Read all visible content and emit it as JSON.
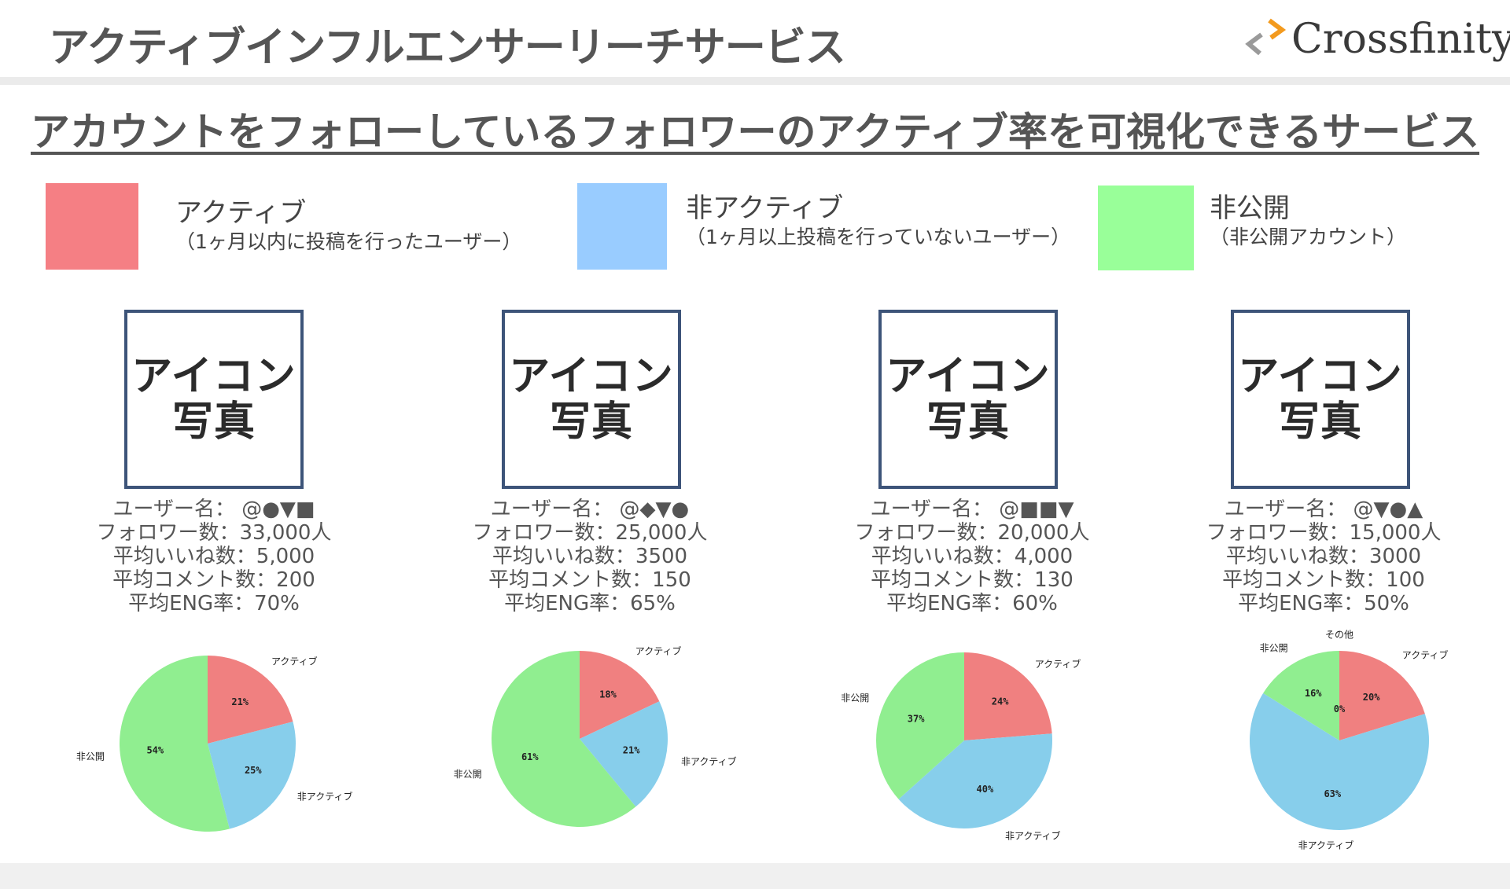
{
  "header": {
    "title": "アクティブインフルエンサーリーチサービス",
    "logo_text": "Crossfinity",
    "logo_icon": "chevron-arrows-logo"
  },
  "subtitle": "アカウントをフォローしているフォロワーのアクティブ率を可視化できるサービス",
  "legend": [
    {
      "label": "アクティブ",
      "sub": "（1ヶ月以内に投稿を行ったユーザー）",
      "color": "#f57f84"
    },
    {
      "label": "非アクティブ",
      "sub": "（1ヶ月以上投稿を行っていないユーザー）",
      "color": "#99ccff"
    },
    {
      "label": "非公開",
      "sub": "（非公開アカウント）",
      "color": "#99ff99"
    }
  ],
  "cards": [
    {
      "icon_text": [
        "アイコン",
        "写真"
      ],
      "stats": [
        "ユーザー名： @●▼■",
        "フォロワー数：33,000人",
        "平均いいね数：5,000",
        "平均コメント数：200",
        "平均ENG率：70%"
      ]
    },
    {
      "icon_text": [
        "アイコン",
        "写真"
      ],
      "stats": [
        "ユーザー名： @◆▼●",
        "フォロワー数：25,000人",
        "平均いいね数：3500",
        "平均コメント数：150",
        "平均ENG率：65%"
      ]
    },
    {
      "icon_text": [
        "アイコン",
        "写真"
      ],
      "stats": [
        "ユーザー名： @■■▼",
        "フォロワー数：20,000人",
        "平均いいね数：4,000",
        "平均コメント数：130",
        "平均ENG率：60%"
      ]
    },
    {
      "icon_text": [
        "アイコン",
        "写真"
      ],
      "stats": [
        "ユーザー名： @▼●▲",
        "フォロワー数：15,000人",
        "平均いいね数：3000",
        "平均コメント数：100",
        "平均ENG率：50%"
      ]
    }
  ],
  "chart_data": [
    {
      "type": "pie",
      "slices": [
        {
          "label": "アクティブ",
          "value": 21,
          "pct_label": "21%",
          "color": "#f08080"
        },
        {
          "label": "非アクティブ",
          "value": 25,
          "pct_label": "25%",
          "color": "#87ceeb"
        },
        {
          "label": "非公開",
          "value": 54,
          "pct_label": "54%",
          "color": "#90ee90"
        }
      ]
    },
    {
      "type": "pie",
      "slices": [
        {
          "label": "アクティブ",
          "value": 18,
          "pct_label": "18%",
          "color": "#f08080"
        },
        {
          "label": "非アクティブ",
          "value": 21,
          "pct_label": "21%",
          "color": "#87ceeb"
        },
        {
          "label": "非公開",
          "value": 61,
          "pct_label": "61%",
          "color": "#90ee90"
        }
      ]
    },
    {
      "type": "pie",
      "slices": [
        {
          "label": "アクティブ",
          "value": 24,
          "pct_label": "24%",
          "color": "#f08080"
        },
        {
          "label": "非アクティブ",
          "value": 40,
          "pct_label": "40%",
          "color": "#87ceeb"
        },
        {
          "label": "非公開",
          "value": 37,
          "pct_label": "37%",
          "color": "#90ee90"
        }
      ]
    },
    {
      "type": "pie",
      "slices": [
        {
          "label": "アクティブ",
          "value": 20,
          "pct_label": "20%",
          "color": "#f08080"
        },
        {
          "label": "非アクティブ",
          "value": 63,
          "pct_label": "63%",
          "color": "#87ceeb"
        },
        {
          "label": "非公開",
          "value": 16,
          "pct_label": "16%",
          "color": "#90ee90"
        },
        {
          "label": "その他",
          "value": 0,
          "pct_label": "0%",
          "color": "#cccccc"
        }
      ]
    }
  ]
}
